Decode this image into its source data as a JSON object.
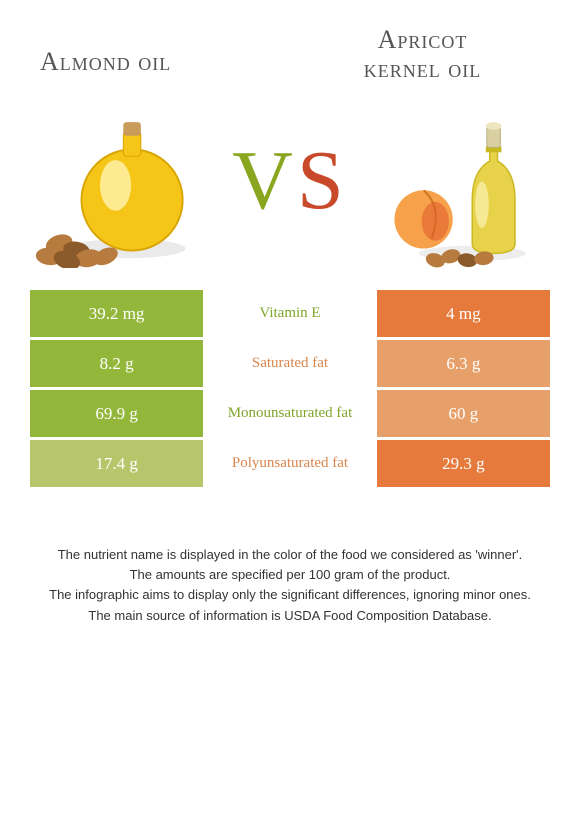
{
  "titles": {
    "left": "Almond oil",
    "right_line1": "Apricot",
    "right_line2": "kernel oil"
  },
  "vs": {
    "v": "V",
    "s": "S"
  },
  "colors": {
    "green": "#92b73a",
    "olive": "#b7c66b",
    "orange": "#e67a3c",
    "salmon": "#e8a06a",
    "greenText": "#7fa52a",
    "orangeText": "#d9854b",
    "background": "#ffffff"
  },
  "rows": [
    {
      "left": "39.2 mg",
      "label": "Vitamin E",
      "right": "4 mg",
      "leftCls": "green",
      "midCls": "greenTxt",
      "rightCls": "orange"
    },
    {
      "left": "8.2 g",
      "label": "Saturated fat",
      "right": "6.3 g",
      "leftCls": "green",
      "midCls": "orangeTxt",
      "rightCls": "salmon"
    },
    {
      "left": "69.9 g",
      "label": "Monounsaturated fat",
      "right": "60 g",
      "leftCls": "green",
      "midCls": "greenTxt",
      "rightCls": "salmon"
    },
    {
      "left": "17.4 g",
      "label": "Polyunsaturated fat",
      "right": "29.3 g",
      "leftCls": "olive",
      "midCls": "orangeTxt",
      "rightCls": "orange"
    }
  ],
  "footnotes": [
    "The nutrient name is displayed in the color of the food we considered as 'winner'.",
    "The amounts are specified per 100 gram of the product.",
    "The infographic aims to display only the significant differences, ignoring minor ones.",
    "The main source of information is USDA Food Composition Database."
  ],
  "illus": {
    "left": {
      "bottle_fill": "#f5c518",
      "bottle_highlight": "#fff3b0",
      "cork": "#c89b5a",
      "nut_fill": "#b77b3f",
      "nut_dark": "#8a5a2b"
    },
    "right": {
      "bottle_fill": "#e8d24a",
      "bottle_highlight": "#f7eea0",
      "cap": "#d9cfa0",
      "apricot": "#f7a24a",
      "apricot_blush": "#e05a2b",
      "kernel": "#b77b3f"
    }
  }
}
